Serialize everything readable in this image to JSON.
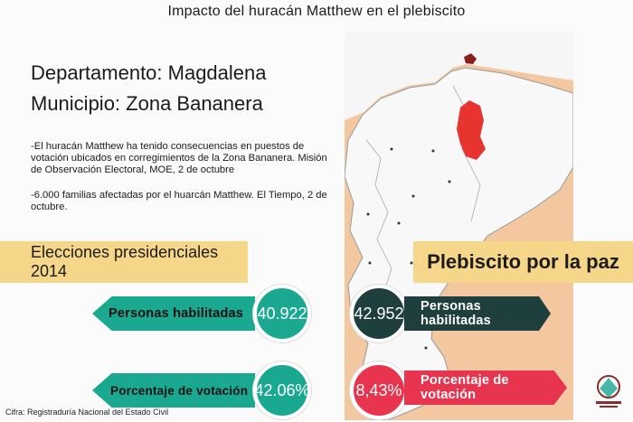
{
  "title": "Impacto del huracán Matthew en el plebiscito",
  "department_line": "Departamento: Magdalena",
  "municipality_line": "Municipio: Zona Bananera",
  "paragraph1": "-El huracán Matthew ha tenido consecuencias en puestos de votación ubicados en corregimientos de la Zona Bananera. Misión de Observación Electoral, MOE, 2 de octubre",
  "paragraph2": "-6.000 familias afectadas por el huarcán Matthew. El Tiempo, 2 de octubre.",
  "left_section": {
    "title": "Elecciones presidenciales 2014",
    "voters_label": "Personas habilitadas",
    "voters_value": "40.922",
    "turnout_label": "Porcentaje de votación",
    "turnout_value": "42.06%"
  },
  "right_section": {
    "title": "Plebiscito por la paz",
    "voters_label": "Personas habilitadas",
    "voters_value": "42.952",
    "turnout_label": "Porcentaje de votación",
    "turnout_value": "8,43%"
  },
  "source": "Cifra: Registraduría Nacional del Estado Civil",
  "colors": {
    "teal": "#1aa891",
    "dark": "#1f3e3e",
    "red": "#e8344e",
    "band": "#f6d78a"
  }
}
